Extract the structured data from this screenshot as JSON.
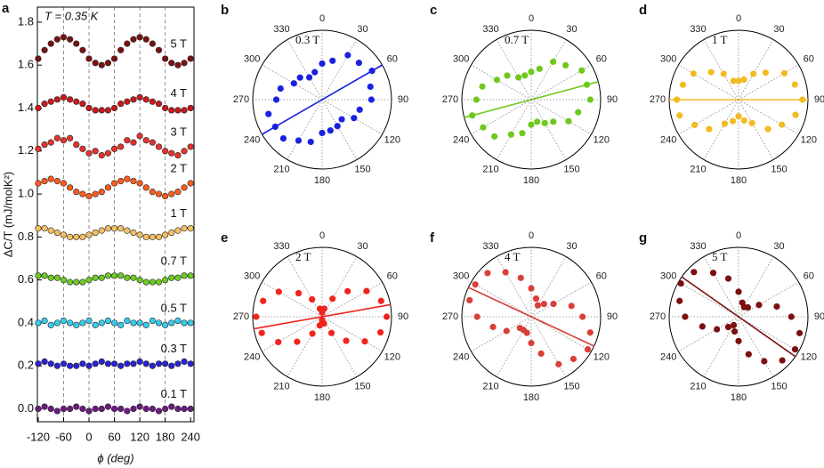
{
  "chart_data": [
    {
      "type": "line",
      "panel_label": "a",
      "annotation": "T = 0.35 K",
      "x_label": "ϕ (deg)",
      "y_label": "ΔC/T (mJ/molK²)",
      "x": [
        -120,
        -105,
        -90,
        -75,
        -60,
        -45,
        -30,
        -15,
        0,
        15,
        30,
        45,
        60,
        75,
        90,
        105,
        120,
        135,
        150,
        165,
        180,
        195,
        210,
        225,
        240
      ],
      "xlim": [
        -122,
        248
      ],
      "xticks": [
        -120,
        -60,
        0,
        60,
        120,
        180,
        240
      ],
      "vlines": [
        -60,
        0,
        60,
        120,
        180
      ],
      "ylim": [
        -0.06,
        1.87
      ],
      "yticks": [
        {
          "value": 0,
          "label": "0.0"
        },
        {
          "value": 0.2,
          "label": "0.2"
        },
        {
          "value": 0.4,
          "label": "0.4"
        },
        {
          "value": 0.6,
          "label": "0.6"
        },
        {
          "value": 0.8,
          "label": "0.8"
        },
        {
          "value": 1,
          "label": "1.0"
        },
        {
          "value": 1.2,
          "label": "1.2"
        },
        {
          "value": 1.4,
          "label": "1.4"
        },
        {
          "value": 1.6,
          "label": "1.6"
        },
        {
          "value": 1.8,
          "label": "1.8"
        }
      ],
      "series": [
        {
          "name": "0.1 T",
          "color": "#6b1c80",
          "values": [
            0,
            0.01,
            0,
            -0.01,
            0,
            0,
            0.01,
            0,
            -0.01,
            0,
            0,
            0.01,
            0,
            0,
            -0.01,
            0,
            0.01,
            0,
            0,
            -0.01,
            0,
            0.01,
            0,
            0,
            0
          ]
        },
        {
          "name": "0.3 T",
          "color": "#2b22d6",
          "values": [
            0.21,
            0.22,
            0.21,
            0.2,
            0.21,
            0.2,
            0.2,
            0.21,
            0.2,
            0.21,
            0.22,
            0.21,
            0.21,
            0.2,
            0.21,
            0.21,
            0.22,
            0.21,
            0.2,
            0.21,
            0.21,
            0.2,
            0.21,
            0.22,
            0.21
          ]
        },
        {
          "name": "0.5 T",
          "color": "#35cdee",
          "values": [
            0.4,
            0.41,
            0.39,
            0.4,
            0.41,
            0.4,
            0.39,
            0.4,
            0.41,
            0.39,
            0.4,
            0.41,
            0.4,
            0.39,
            0.41,
            0.4,
            0.4,
            0.39,
            0.41,
            0.4,
            0.39,
            0.4,
            0.41,
            0.4,
            0.4
          ]
        },
        {
          "name": "0.7 T",
          "color": "#6ccc22",
          "values": [
            0.62,
            0.62,
            0.61,
            0.61,
            0.6,
            0.59,
            0.59,
            0.59,
            0.6,
            0.61,
            0.61,
            0.62,
            0.62,
            0.62,
            0.61,
            0.61,
            0.6,
            0.59,
            0.59,
            0.59,
            0.6,
            0.61,
            0.61,
            0.62,
            0.62
          ]
        },
        {
          "name": "1 T",
          "color": "#f6c062",
          "values": [
            0.84,
            0.84,
            0.83,
            0.82,
            0.81,
            0.8,
            0.8,
            0.8,
            0.81,
            0.82,
            0.83,
            0.84,
            0.84,
            0.84,
            0.83,
            0.82,
            0.81,
            0.8,
            0.8,
            0.8,
            0.81,
            0.82,
            0.83,
            0.84,
            0.84
          ]
        },
        {
          "name": "2 T",
          "color": "#ff5a1c",
          "values": [
            1.05,
            1.06,
            1.07,
            1.06,
            1.05,
            1.03,
            1.01,
            1,
            0.99,
            1,
            1.01,
            1.03,
            1.05,
            1.06,
            1.07,
            1.06,
            1.05,
            1.03,
            1.01,
            1,
            0.99,
            1,
            1.01,
            1.03,
            1.05
          ]
        },
        {
          "name": "3 T",
          "color": "#e5332b",
          "values": [
            1.21,
            1.23,
            1.24,
            1.26,
            1.25,
            1.26,
            1.23,
            1.21,
            1.19,
            1.2,
            1.18,
            1.19,
            1.21,
            1.22,
            1.25,
            1.24,
            1.27,
            1.25,
            1.24,
            1.22,
            1.2,
            1.19,
            1.18,
            1.2,
            1.22
          ]
        },
        {
          "name": "4 T",
          "color": "#c9191b",
          "values": [
            1.4,
            1.42,
            1.43,
            1.44,
            1.45,
            1.44,
            1.43,
            1.42,
            1.4,
            1.39,
            1.39,
            1.39,
            1.4,
            1.42,
            1.43,
            1.44,
            1.45,
            1.44,
            1.43,
            1.42,
            1.4,
            1.39,
            1.39,
            1.39,
            1.4
          ]
        },
        {
          "name": "5 T",
          "color": "#7a1212",
          "values": [
            1.63,
            1.67,
            1.7,
            1.72,
            1.73,
            1.72,
            1.7,
            1.67,
            1.63,
            1.61,
            1.6,
            1.61,
            1.63,
            1.67,
            1.7,
            1.72,
            1.73,
            1.72,
            1.7,
            1.67,
            1.63,
            1.61,
            1.6,
            1.61,
            1.63
          ]
        }
      ]
    },
    {
      "type": "polar",
      "panel_label": "b",
      "label": "0.3 T",
      "color": "#1a22e0",
      "fit_angle": 60,
      "rlim": [
        0,
        1
      ],
      "angle_ticks": [
        0,
        30,
        60,
        90,
        120,
        150,
        180,
        210,
        240,
        270,
        300,
        330
      ],
      "theta": [
        0,
        15,
        30,
        45,
        60,
        75,
        90,
        105,
        120,
        135,
        150,
        165,
        180,
        195,
        210,
        225,
        240,
        255,
        270,
        285,
        300,
        315,
        330,
        345
      ],
      "r": [
        0.52,
        0.58,
        0.74,
        0.75,
        0.83,
        0.72,
        0.71,
        0.56,
        0.53,
        0.4,
        0.44,
        0.46,
        0.48,
        0.63,
        0.68,
        0.79,
        0.78,
        0.8,
        0.66,
        0.62,
        0.47,
        0.45,
        0.37,
        0.41
      ]
    },
    {
      "type": "polar",
      "panel_label": "c",
      "label": "0.7 T",
      "color": "#70c81e",
      "fit_angle": 75,
      "rlim": [
        0,
        1
      ],
      "angle_ticks": [
        0,
        30,
        60,
        90,
        120,
        150,
        180,
        210,
        240,
        270,
        300,
        330
      ],
      "theta": [
        0,
        15,
        30,
        45,
        60,
        75,
        90,
        105,
        120,
        135,
        150,
        165,
        180,
        195,
        210,
        225,
        240,
        255,
        270,
        285,
        300,
        315,
        330,
        345
      ],
      "r": [
        0.4,
        0.46,
        0.63,
        0.7,
        0.84,
        0.83,
        0.85,
        0.7,
        0.62,
        0.45,
        0.39,
        0.33,
        0.36,
        0.5,
        0.58,
        0.75,
        0.8,
        0.88,
        0.79,
        0.73,
        0.57,
        0.49,
        0.37,
        0.36
      ]
    },
    {
      "type": "polar",
      "panel_label": "d",
      "label": "1 T",
      "color": "#f3bb22",
      "fit_angle": 90,
      "rlim": [
        0,
        1
      ],
      "angle_ticks": [
        0,
        30,
        60,
        90,
        120,
        150,
        180,
        210,
        240,
        270,
        300,
        330
      ],
      "theta": [
        0,
        15,
        30,
        45,
        60,
        75,
        90,
        105,
        120,
        135,
        150,
        165,
        180,
        195,
        210,
        225,
        240,
        255,
        270,
        285,
        300,
        315,
        330,
        345
      ],
      "r": [
        0.27,
        0.3,
        0.43,
        0.55,
        0.76,
        0.84,
        0.92,
        0.85,
        0.72,
        0.6,
        0.39,
        0.31,
        0.24,
        0.32,
        0.4,
        0.6,
        0.73,
        0.88,
        0.89,
        0.83,
        0.75,
        0.56,
        0.43,
        0.28
      ]
    },
    {
      "type": "polar",
      "panel_label": "e",
      "label": "2 T",
      "color": "#f0231e",
      "fit_angle": 80,
      "rlim": [
        0,
        1
      ],
      "angle_ticks": [
        0,
        30,
        60,
        90,
        120,
        150,
        180,
        210,
        240,
        270,
        300,
        330
      ],
      "theta": [
        0,
        15,
        30,
        45,
        60,
        75,
        90,
        105,
        120,
        135,
        150,
        165,
        180,
        195,
        210,
        225,
        240,
        255,
        270,
        285,
        300,
        315,
        330,
        345
      ],
      "r": [
        0.06,
        0.12,
        0.3,
        0.52,
        0.74,
        0.88,
        0.93,
        0.87,
        0.71,
        0.49,
        0.27,
        0.1,
        0.05,
        0.13,
        0.28,
        0.51,
        0.73,
        0.9,
        0.95,
        0.88,
        0.72,
        0.48,
        0.29,
        0.12
      ]
    },
    {
      "type": "polar",
      "panel_label": "f",
      "label": "4 T",
      "color": "#d8403a",
      "fit_angle": 115,
      "rlim": [
        0,
        1
      ],
      "angle_ticks": [
        0,
        30,
        60,
        90,
        120,
        150,
        180,
        210,
        240,
        270,
        300,
        330
      ],
      "theta": [
        0,
        15,
        30,
        45,
        60,
        75,
        90,
        105,
        120,
        135,
        150,
        165,
        180,
        195,
        210,
        225,
        240,
        255,
        270,
        285,
        300,
        315,
        330,
        345
      ],
      "r": [
        0.41,
        0.27,
        0.19,
        0.26,
        0.37,
        0.6,
        0.74,
        0.88,
        0.94,
        0.86,
        0.79,
        0.55,
        0.38,
        0.24,
        0.22,
        0.23,
        0.41,
        0.57,
        0.78,
        0.92,
        0.93,
        0.89,
        0.74,
        0.58
      ]
    },
    {
      "type": "polar",
      "panel_label": "g",
      "label": "5 T",
      "color": "#7c0f0f",
      "fit_angle": 125,
      "rlim": [
        0,
        1
      ],
      "angle_ticks": [
        0,
        30,
        60,
        90,
        120,
        150,
        180,
        210,
        240,
        270,
        300,
        330
      ],
      "theta": [
        0,
        15,
        30,
        45,
        60,
        75,
        90,
        105,
        120,
        135,
        150,
        165,
        180,
        195,
        210,
        225,
        240,
        255,
        270,
        285,
        300,
        315,
        330,
        345
      ],
      "r": [
        0.36,
        0.21,
        0.16,
        0.19,
        0.34,
        0.57,
        0.76,
        0.91,
        0.94,
        0.89,
        0.74,
        0.56,
        0.35,
        0.22,
        0.14,
        0.21,
        0.36,
        0.54,
        0.77,
        0.88,
        0.96,
        0.91,
        0.73,
        0.57
      ]
    }
  ]
}
